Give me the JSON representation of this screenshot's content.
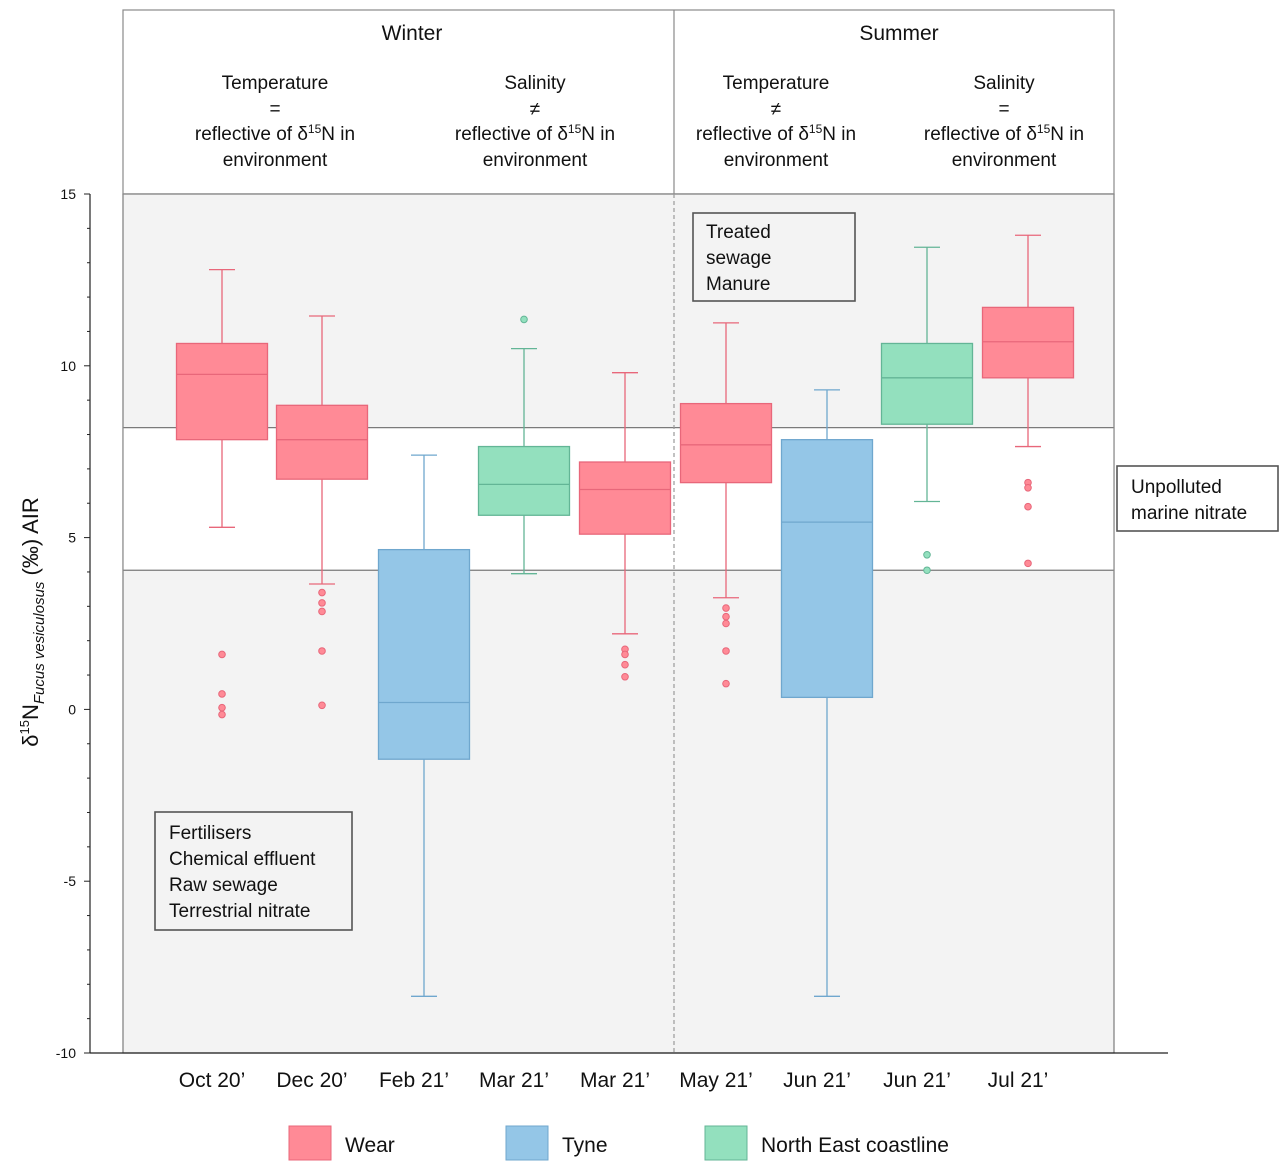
{
  "chart_data": {
    "type": "box",
    "ylabel_parts": {
      "delta": "δ",
      "sup": "15",
      "n": "N",
      "sub": "Fucus vesiculosus",
      "rest": " (‰) AIR"
    },
    "ylim": [
      -10,
      15
    ],
    "yticks": [
      -10,
      -5,
      0,
      5,
      10,
      15
    ],
    "yticklabels": [
      "-10",
      "-5",
      "0",
      "5",
      "10",
      "15"
    ],
    "seasons": [
      {
        "name": "Winter",
        "groups": [
          {
            "title": "Temperature",
            "symbol": "=",
            "text1": "reflective of δ",
            "sup": "15",
            "text2": "N in",
            "text3": "environment"
          },
          {
            "title": "Salinity",
            "symbol": "≠",
            "text1": "reflective of δ",
            "sup": "15",
            "text2": "N in",
            "text3": "environment"
          }
        ]
      },
      {
        "name": "Summer",
        "groups": [
          {
            "title": "Temperature",
            "symbol": "≠",
            "text1": "reflective of δ",
            "sup": "15",
            "text2": "N in",
            "text3": "environment"
          },
          {
            "title": "Salinity",
            "symbol": "=",
            "text1": "reflective of δ",
            "sup": "15",
            "text2": "N in",
            "text3": "environment"
          }
        ]
      }
    ],
    "reference_band": [
      4.05,
      8.2
    ],
    "band_label": [
      "Unpolluted",
      "marine nitrate"
    ],
    "annotation_upper": [
      "Treated",
      "sewage",
      "Manure"
    ],
    "annotation_lower": [
      "Fertilisers",
      "Chemical effluent",
      "Raw sewage",
      "Terrestrial nitrate"
    ],
    "categories": [
      "Oct 20’",
      "Dec 20’",
      "Feb 21’",
      "Mar 21’",
      "Mar 21’",
      "May 21’",
      "Jun 21’",
      "Jun 21’",
      "Jul 21’"
    ],
    "boxes": [
      {
        "site": "Wear",
        "whislo": 5.3,
        "q1": 7.85,
        "median": 9.75,
        "q3": 10.65,
        "whishi": 12.8,
        "fliers": [
          1.6,
          0.45,
          0.05,
          -0.15
        ]
      },
      {
        "site": "Wear",
        "whislo": 3.65,
        "q1": 6.7,
        "median": 7.85,
        "q3": 8.85,
        "whishi": 11.45,
        "fliers": [
          3.4,
          3.1,
          2.85,
          1.7,
          0.12
        ]
      },
      {
        "site": "Tyne",
        "whislo": -8.35,
        "q1": -1.45,
        "median": 0.2,
        "q3": 4.65,
        "whishi": 7.4,
        "fliers": []
      },
      {
        "site": "North East coastline",
        "whislo": 3.95,
        "q1": 5.65,
        "median": 6.55,
        "q3": 7.65,
        "whishi": 10.5,
        "fliers": [
          11.35
        ]
      },
      {
        "site": "Wear",
        "whislo": 2.2,
        "q1": 5.1,
        "median": 6.4,
        "q3": 7.2,
        "whishi": 9.8,
        "fliers": [
          1.75,
          1.6,
          1.3,
          0.95
        ]
      },
      {
        "site": "Wear",
        "whislo": 3.25,
        "q1": 6.6,
        "median": 7.7,
        "q3": 8.9,
        "whishi": 11.25,
        "fliers": [
          2.95,
          2.7,
          2.5,
          1.7,
          0.75
        ]
      },
      {
        "site": "Tyne",
        "whislo": -8.35,
        "q1": 0.35,
        "median": 5.45,
        "q3": 7.85,
        "whishi": 9.3,
        "fliers": []
      },
      {
        "site": "North East coastline",
        "whislo": 6.05,
        "q1": 8.3,
        "median": 9.65,
        "q3": 10.65,
        "whishi": 13.45,
        "fliers": [
          4.5,
          4.05
        ]
      },
      {
        "site": "Wear",
        "whislo": 7.65,
        "q1": 9.65,
        "median": 10.7,
        "q3": 11.7,
        "whishi": 13.8,
        "fliers": [
          6.6,
          6.45,
          5.9,
          4.25
        ]
      }
    ],
    "legend": [
      {
        "name": "Wear",
        "fill": "#FF8A96",
        "stroke": "#E8677A"
      },
      {
        "name": "Tyne",
        "fill": "#94C6E7",
        "stroke": "#6FA7CE"
      },
      {
        "name": "North East coastline",
        "fill": "#93E0BE",
        "stroke": "#63B596"
      }
    ],
    "legend_position": "bottom",
    "colors": {
      "panel_bg": "#F3F3F3",
      "band_bg": "#FFFFFF",
      "frame": "#8A8A8A"
    }
  }
}
